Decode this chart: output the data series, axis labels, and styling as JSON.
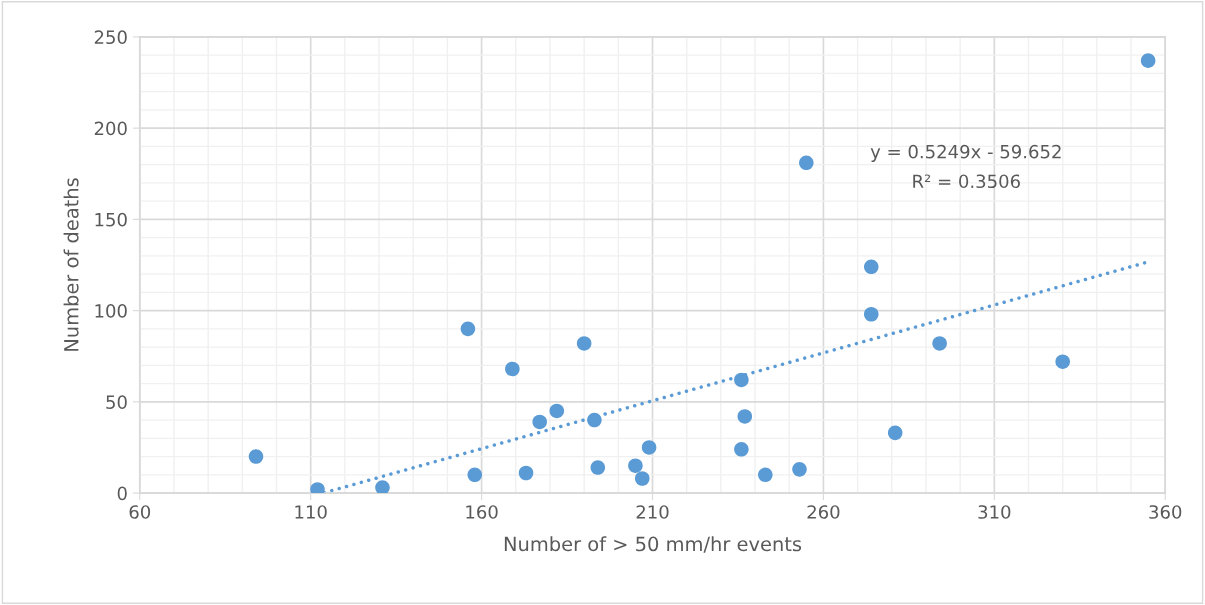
{
  "chart_data": {
    "type": "scatter",
    "xlabel": "Number of > 50 mm/hr events",
    "ylabel": "Number of deaths",
    "series": [
      {
        "color": "#5b9bd5",
        "marker": "circle",
        "x": [
          94,
          112,
          131,
          156,
          158,
          169,
          173,
          177,
          182,
          190,
          193,
          194,
          205,
          207,
          209,
          236,
          237,
          236,
          243,
          253,
          255,
          274,
          274,
          281,
          294,
          330,
          355
        ],
        "values": [
          20,
          2,
          3,
          90,
          10,
          68,
          11,
          39,
          45,
          82,
          40,
          14,
          15,
          8,
          25,
          62,
          42,
          24,
          10,
          13,
          181,
          124,
          98,
          33,
          82,
          72,
          237
        ]
      },
      {
        "type": "line",
        "color": "#5b9bd5",
        "line_style": "dotted",
        "x": [
          114,
          355
        ],
        "values": [
          0.2,
          126.7
        ]
      }
    ],
    "annotations": [
      "y = 0.5249x - 59.652",
      "R² = 0.3506"
    ],
    "xlim": [
      60,
      360
    ],
    "ylim": [
      0,
      250
    ],
    "xticks": [
      60,
      {
        "value": 70,
        "label": null
      },
      {
        "value": 80,
        "label": null
      },
      {
        "value": 90,
        "label": null
      },
      {
        "value": 100,
        "label": null
      },
      110,
      {
        "value": 120,
        "label": null
      },
      {
        "value": 130,
        "label": null
      },
      {
        "value": 140,
        "label": null
      },
      {
        "value": 150,
        "label": null
      },
      160,
      {
        "value": 170,
        "label": null
      },
      {
        "value": 180,
        "label": null
      },
      {
        "value": 190,
        "label": null
      },
      {
        "value": 200,
        "label": null
      },
      210,
      {
        "value": 220,
        "label": null
      },
      {
        "value": 230,
        "label": null
      },
      {
        "value": 240,
        "label": null
      },
      {
        "value": 250,
        "label": null
      },
      260,
      {
        "value": 270,
        "label": null
      },
      {
        "value": 280,
        "label": null
      },
      {
        "value": 290,
        "label": null
      },
      {
        "value": 300,
        "label": null
      },
      310,
      {
        "value": 320,
        "label": null
      },
      {
        "value": 330,
        "label": null
      },
      {
        "value": 340,
        "label": null
      },
      {
        "value": 350,
        "label": null
      },
      360
    ],
    "yticks": [
      0,
      {
        "value": 10,
        "label": null
      },
      {
        "value": 20,
        "label": null
      },
      {
        "value": 30,
        "label": null
      },
      {
        "value": 40,
        "label": null
      },
      50,
      {
        "value": 60,
        "label": null
      },
      {
        "value": 70,
        "label": null
      },
      {
        "value": 80,
        "label": null
      },
      {
        "value": 90,
        "label": null
      },
      100,
      {
        "value": 110,
        "label": null
      },
      {
        "value": 120,
        "label": null
      },
      {
        "value": 130,
        "label": null
      },
      {
        "value": 140,
        "label": null
      },
      150,
      {
        "value": 160,
        "label": null
      },
      {
        "value": 170,
        "label": null
      },
      {
        "value": 180,
        "label": null
      },
      {
        "value": 190,
        "label": null
      },
      200,
      {
        "value": 210,
        "label": null
      },
      {
        "value": 220,
        "label": null
      },
      {
        "value": 230,
        "label": null
      },
      {
        "value": 240,
        "label": null
      },
      250
    ],
    "grid": true,
    "legend": false
  }
}
